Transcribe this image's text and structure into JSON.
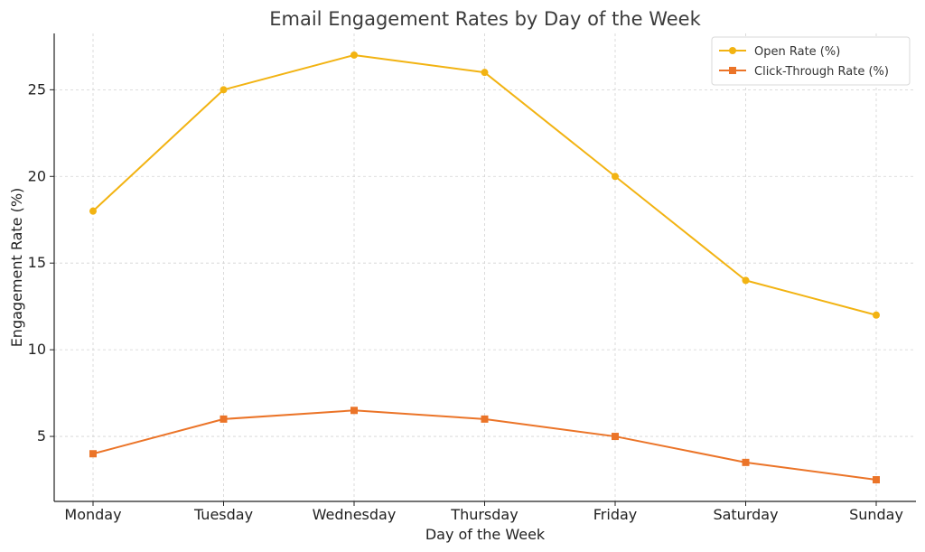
{
  "chart_data": {
    "type": "line",
    "title": "Email Engagement Rates by Day of the Week",
    "xlabel": "Day of the Week",
    "ylabel": "Engagement Rate (%)",
    "categories": [
      "Monday",
      "Tuesday",
      "Wednesday",
      "Thursday",
      "Friday",
      "Saturday",
      "Sunday"
    ],
    "ylim": [
      1.25,
      28.25
    ],
    "yticks": [
      5,
      10,
      15,
      20,
      25
    ],
    "grid": true,
    "legend_position": "top-right",
    "series": [
      {
        "name": "Open Rate (%)",
        "values": [
          18,
          25,
          27,
          26,
          20,
          14,
          12
        ],
        "color": "#f2b312",
        "marker": "circle"
      },
      {
        "name": "Click-Through Rate (%)",
        "values": [
          4,
          6,
          6.5,
          6,
          5,
          3.5,
          2.5
        ],
        "color": "#eb7428",
        "marker": "square"
      }
    ]
  }
}
